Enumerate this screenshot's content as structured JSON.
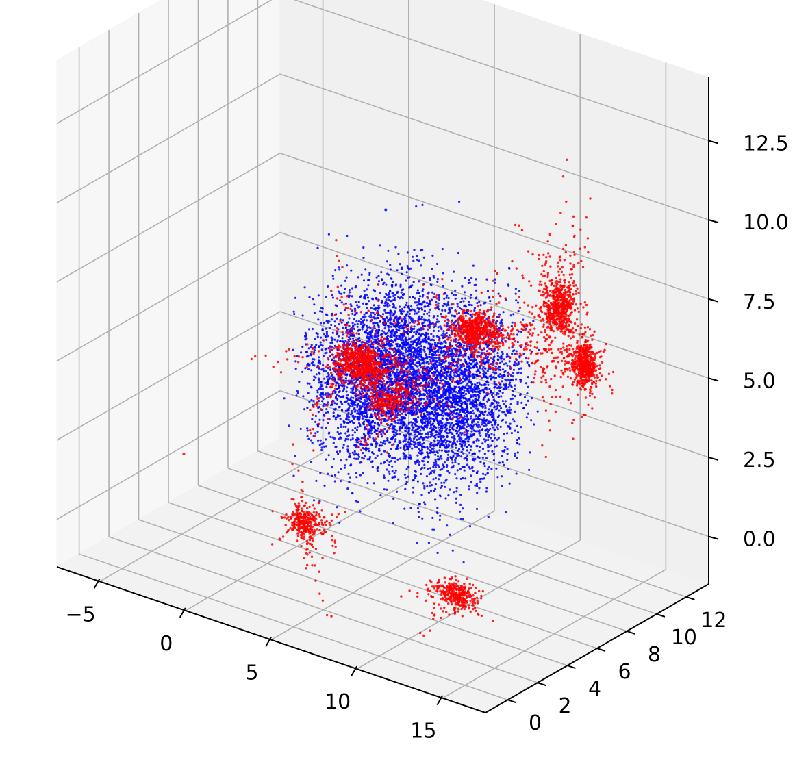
{
  "chart_data": {
    "type": "scatter",
    "projection": "3d",
    "title": "",
    "xlabel": "",
    "ylabel": "",
    "zlabel": "",
    "grid": true,
    "legend": "none",
    "xlim": [
      -7.5,
      17.5
    ],
    "ylim": [
      -1.5,
      13.5
    ],
    "zlim": [
      -1.5,
      14.5
    ],
    "xticks": [
      -5,
      0,
      5,
      10,
      15
    ],
    "xtick_labels": [
      "−5",
      "0",
      "5",
      "10",
      "15"
    ],
    "yticks": [
      0,
      2,
      4,
      6,
      8,
      10,
      12
    ],
    "ytick_labels": [
      "0",
      "2",
      "4",
      "6",
      "8",
      "10",
      "12"
    ],
    "zticks": [
      0,
      2.5,
      5,
      7.5,
      10,
      12.5
    ],
    "ztick_labels": [
      "0.0",
      "2.5",
      "5.0",
      "7.5",
      "10.0",
      "12.5"
    ],
    "series": [
      {
        "color": "#0000ff",
        "marker_size": 1,
        "point_count": 6000,
        "distribution": "dense roughly uniform cloud",
        "center": [
          6,
          7,
          4.5
        ],
        "spread": [
          4.5,
          3.2,
          2.2
        ]
      },
      {
        "color": "#ff0000",
        "marker_size": 1,
        "point_count": 4000,
        "distribution": "branching filament clusters",
        "clusters": [
          {
            "center": [
              4,
              6,
              5
            ],
            "spread": [
              3,
              2.5,
              1.2
            ],
            "points": 900
          },
          {
            "center": [
              8,
              9,
              6
            ],
            "spread": [
              3,
              1.5,
              1.2
            ],
            "points": 800
          },
          {
            "center": [
              12,
              10,
              7
            ],
            "spread": [
              1.5,
              1.5,
              1.5
            ],
            "points": 700
          },
          {
            "center": [
              15,
              8,
              6.5
            ],
            "spread": [
              1.2,
              1.2,
              1.5
            ],
            "points": 600
          },
          {
            "center": [
              4,
              2,
              1
            ],
            "spread": [
              1.2,
              0.8,
              1.0
            ],
            "points": 350
          },
          {
            "center": [
              12,
              3,
              0
            ],
            "spread": [
              1.5,
              0.8,
              0.8
            ],
            "points": 350
          },
          {
            "center": [
              7,
              4,
              5
            ],
            "spread": [
              2.5,
              1.5,
              1.5
            ],
            "points": 300
          }
        ]
      }
    ]
  }
}
